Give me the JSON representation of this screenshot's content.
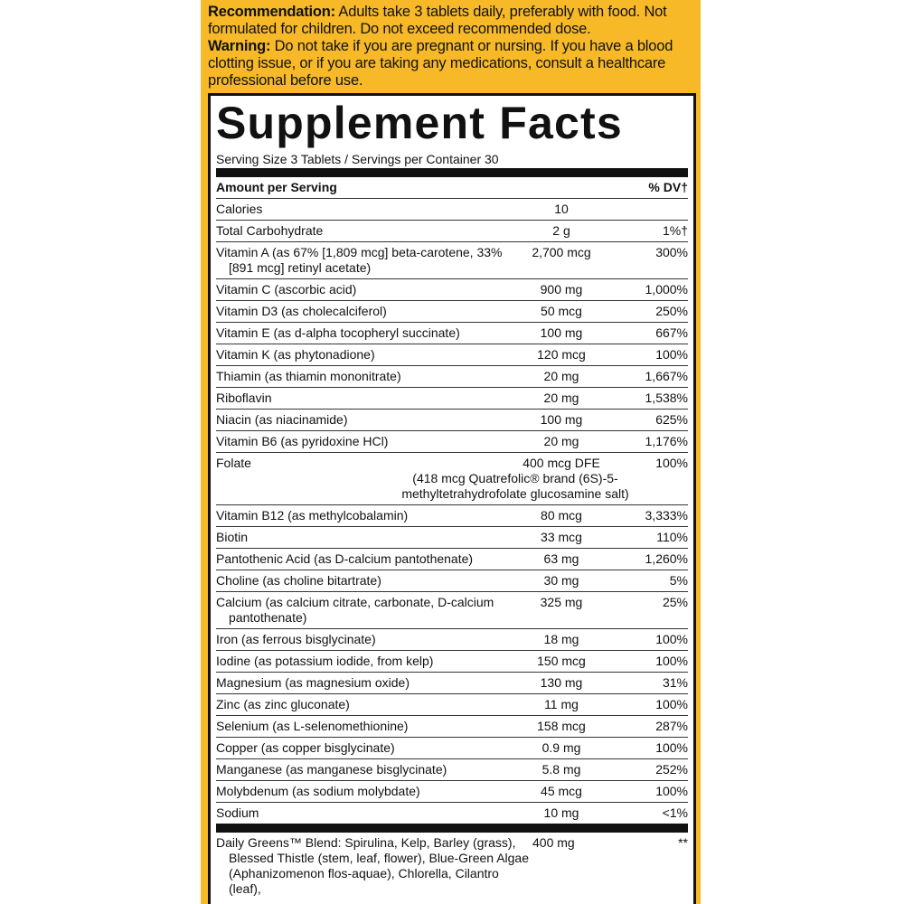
{
  "recommendation": {
    "label": "Recommendation:",
    "text": "Adults take 3 tablets daily, preferably with food. Not formulated for children. Do not exceed recommended dose."
  },
  "warning": {
    "label": "Warning:",
    "text": "Do not take if you are pregnant or nursing. If you have a blood clotting issue, or if you are taking any medications, consult a healthcare professional before use."
  },
  "facts": {
    "title": "Supplement Facts",
    "serving": "Serving Size 3 Tablets / Servings per Container 30",
    "header": [
      "Amount per Serving",
      "% DV†"
    ],
    "rows": [
      [
        "Calories",
        "10",
        ""
      ],
      [
        "Total Carbohydrate",
        "2 g",
        "1%†"
      ],
      [
        "Vitamin A (as 67% [1,809 mcg] beta-carotene, 33% [891 mcg] retinyl acetate)",
        "2,700 mcg",
        "300%"
      ],
      [
        "Vitamin C (ascorbic acid)",
        "900 mg",
        "1,000%"
      ],
      [
        "Vitamin D3 (as cholecalciferol)",
        "50 mcg",
        "250%"
      ],
      [
        "Vitamin E (as d-alpha tocopheryl succinate)",
        "100 mg",
        "667%"
      ],
      [
        "Vitamin K (as phytonadione)",
        "120 mcg",
        "100%"
      ],
      [
        "Thiamin (as thiamin mononitrate)",
        "20 mg",
        "1,667%"
      ],
      [
        "Riboflavin",
        "20 mg",
        "1,538%"
      ],
      [
        "Niacin (as niacinamide)",
        "100 mg",
        "625%"
      ],
      [
        "Vitamin B6 (as pyridoxine HCl)",
        "20 mg",
        "1,176%"
      ],
      [
        "Folate",
        "400 mcg DFE",
        "100%",
        "(418 mcg Quatrefolic® brand (6S)-5-methyltetrahydrofolate glucosamine salt)"
      ],
      [
        "Vitamin B12 (as methylcobalamin)",
        "80 mcg",
        "3,333%"
      ],
      [
        "Biotin",
        "33 mcg",
        "110%"
      ],
      [
        "Pantothenic Acid (as D-calcium pantothenate)",
        "63 mg",
        "1,260%"
      ],
      [
        "Choline (as choline bitartrate)",
        "30 mg",
        "5%"
      ],
      [
        "Calcium (as calcium citrate, carbonate, D-calcium pantothenate)",
        "325 mg",
        "25%"
      ],
      [
        "Iron (as ferrous bisglycinate)",
        "18 mg",
        "100%"
      ],
      [
        "Iodine (as potassium iodide, from kelp)",
        "150 mcg",
        "100%"
      ],
      [
        "Magnesium (as magnesium oxide)",
        "130 mg",
        "31%"
      ],
      [
        "Zinc (as zinc gluconate)",
        "11 mg",
        "100%"
      ],
      [
        "Selenium (as L-selenomethionine)",
        "158 mcg",
        "287%"
      ],
      [
        "Copper (as copper bisglycinate)",
        "0.9 mg",
        "100%"
      ],
      [
        "Manganese (as manganese bisglycinate)",
        "5.8 mg",
        "252%"
      ],
      [
        "Molybdenum (as sodium molybdate)",
        "45 mcg",
        "100%"
      ],
      [
        "Sodium",
        "10 mg",
        "<1%"
      ]
    ],
    "blend": [
      "Daily Greens™ Blend: Spirulina, Kelp, Barley (grass), Blessed Thistle (stem, leaf, flower), Blue-Green Algae (Aphanizomenon flos-aquae), Chlorella, Cilantro (leaf),",
      "400 mg",
      "**"
    ]
  }
}
